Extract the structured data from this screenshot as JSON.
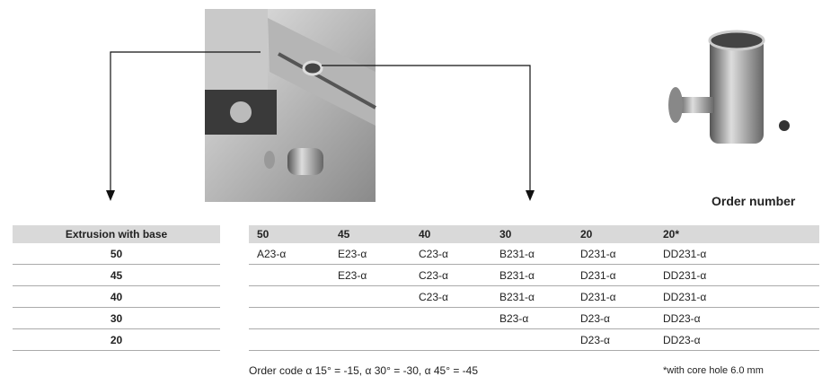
{
  "heading": "Order number",
  "left_table": {
    "header": "Extrusion with base",
    "rows": [
      "50",
      "45",
      "40",
      "30",
      "20"
    ]
  },
  "right_table": {
    "header": [
      "50",
      "45",
      "40",
      "30",
      "20",
      "20*"
    ],
    "rows": [
      [
        "A23-α",
        "E23-α",
        "C23-α",
        "B231-α",
        "D231-α",
        "DD231-α"
      ],
      [
        null,
        "E23-α",
        "C23-α",
        "B231-α",
        "D231-α",
        "DD231-α"
      ],
      [
        null,
        null,
        "C23-α",
        "B231-α",
        "D231-α",
        "DD231-α"
      ],
      [
        null,
        null,
        null,
        "B23-α",
        "D23-α",
        "DD23-α"
      ],
      [
        null,
        null,
        null,
        null,
        "D23-α",
        "DD23-α"
      ]
    ]
  },
  "footnotes": {
    "order_code": "Order code α 15° = -15, α 30° = -30, α 45° = -45",
    "core_hole": "*with core hole 6.0 mm"
  }
}
